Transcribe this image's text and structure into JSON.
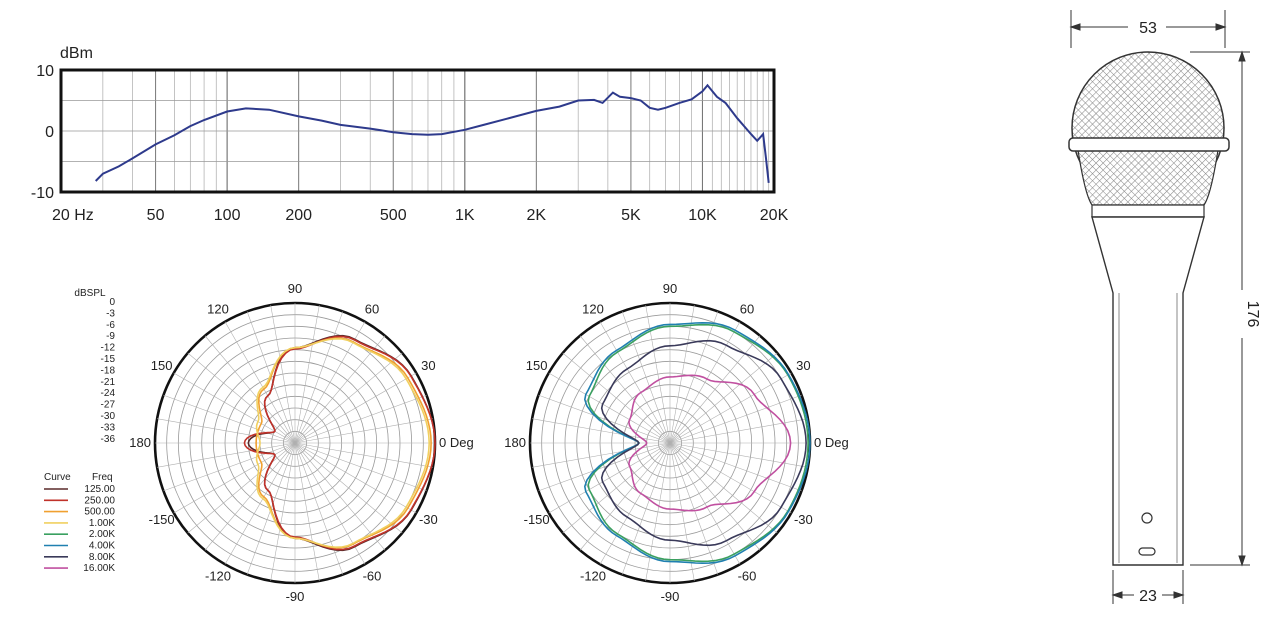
{
  "chart_data": [
    {
      "type": "line",
      "ylabel": "dBm",
      "x_scale": "log",
      "xlim": [
        20,
        20000
      ],
      "ylim": [
        -10,
        10
      ],
      "grid": true,
      "x_tick_values": [
        20,
        50,
        100,
        200,
        500,
        1000,
        2000,
        5000,
        10000,
        20000
      ],
      "x_tick_labels": [
        "20  Hz",
        "50",
        "100",
        "200",
        "500",
        "1K",
        "2K",
        "5K",
        "10K",
        "20K"
      ],
      "y_tick_values": [
        10,
        0,
        -10
      ],
      "y_tick_labels": [
        "10",
        "0",
        "-10"
      ],
      "color": "#2e3a8c",
      "series": [
        {
          "x": [
            28,
            30,
            35,
            40,
            50,
            60,
            70,
            80,
            100,
            120,
            150,
            200,
            250,
            300,
            400,
            500,
            600,
            700,
            800,
            1000,
            1200,
            1500,
            2000,
            2500,
            3000,
            3500,
            3800,
            4200,
            4500,
            5000,
            5500,
            6000,
            6500,
            7000,
            8000,
            9000,
            10000,
            10500,
            11500,
            12500,
            14000,
            16000,
            17000,
            18000,
            18500,
            19000
          ],
          "y": [
            -8.2,
            -7,
            -5.8,
            -4.5,
            -2.2,
            -0.7,
            0.8,
            1.8,
            3.2,
            3.7,
            3.5,
            2.4,
            1.7,
            1.0,
            0.4,
            -0.2,
            -0.5,
            -0.6,
            -0.5,
            0.2,
            1.0,
            2.0,
            3.3,
            4.0,
            5.0,
            5.1,
            4.6,
            6.3,
            5.6,
            5.4,
            5.0,
            3.8,
            3.5,
            3.8,
            4.6,
            5.2,
            6.5,
            7.5,
            5.6,
            4.6,
            2.1,
            -0.5,
            -1.6,
            -0.5,
            -4.5,
            -8.5
          ]
        }
      ]
    },
    {
      "type": "polar",
      "ylabel": "dBSPL",
      "r_tick_labels": [
        "0",
        "-3",
        "-6",
        "-9",
        "-12",
        "-15",
        "-18",
        "-21",
        "-24",
        "-27",
        "-30",
        "-33",
        "-36"
      ],
      "rlim": [
        -36,
        0
      ],
      "angle_labels": [
        "90",
        "60",
        "30",
        "0 Deg",
        "-30",
        "-60",
        "-90",
        "-120",
        "-150",
        "180",
        "150",
        "120"
      ],
      "angle_values": [
        90,
        60,
        30,
        0,
        -30,
        -60,
        -90,
        -120,
        -150,
        180,
        150,
        120
      ],
      "legend": {
        "placement": "left",
        "header_curve": "Curve",
        "header_freq": "Freq",
        "entries": [
          {
            "freq": "125.00",
            "color": "#5a2a2a"
          },
          {
            "freq": "250.00",
            "color": "#c0322a"
          },
          {
            "freq": "500.00",
            "color": "#f0a030"
          },
          {
            "freq": "1.00K",
            "color": "#f0d060"
          },
          {
            "freq": "2.00K",
            "color": "#3aa060"
          },
          {
            "freq": "4.00K",
            "color": "#2080b0"
          },
          {
            "freq": "8.00K",
            "color": "#3a3a5a"
          },
          {
            "freq": "16.00K",
            "color": "#c050a0"
          }
        ]
      },
      "series": [
        {
          "freq": "125.00",
          "color": "#5a2a2a",
          "angles": [
            0,
            30,
            60,
            90,
            120,
            150,
            180,
            -150,
            -120,
            -90,
            -60,
            -30
          ],
          "values": [
            0,
            -1.5,
            -5.2,
            -11.5,
            -22,
            -30,
            -24,
            -30,
            -22,
            -11.5,
            -5.2,
            -1.5
          ]
        },
        {
          "freq": "250.00",
          "color": "#c0322a",
          "angles": [
            0,
            30,
            60,
            90,
            120,
            150,
            180,
            -150,
            -120,
            -90,
            -60,
            -30
          ],
          "values": [
            0,
            -1.6,
            -5.4,
            -11.8,
            -22,
            -30,
            -23,
            -30,
            -22,
            -11.8,
            -5.4,
            -1.6
          ]
        },
        {
          "freq": "500.00",
          "color": "#f0a030",
          "angles": [
            0,
            30,
            60,
            90,
            120,
            150,
            180,
            -150,
            -120,
            -90,
            -60,
            -30
          ],
          "values": [
            -1,
            -2.5,
            -6,
            -11.5,
            -20,
            -26,
            -26,
            -26,
            -20,
            -11.5,
            -6,
            -2.5
          ]
        },
        {
          "freq": "1.00K",
          "color": "#f0d060",
          "angles": [
            0,
            30,
            60,
            90,
            120,
            150,
            180,
            -150,
            -120,
            -90,
            -60,
            -30
          ],
          "values": [
            -1.5,
            -3,
            -6.2,
            -11.5,
            -19.5,
            -25,
            -27,
            -25,
            -19.5,
            -11.5,
            -6.2,
            -3
          ]
        }
      ]
    },
    {
      "type": "polar",
      "rlim": [
        -36,
        0
      ],
      "angle_labels": [
        "90",
        "60",
        "30",
        "0 Deg",
        "-30",
        "-60",
        "-90",
        "-120",
        "-150",
        "180",
        "150",
        "120"
      ],
      "angle_values": [
        90,
        60,
        30,
        0,
        -30,
        -60,
        -90,
        -120,
        -150,
        180,
        150,
        120
      ],
      "series": [
        {
          "freq": "2.00K",
          "color": "#3aa060",
          "angles": [
            0,
            30,
            60,
            90,
            120,
            150,
            180,
            -150,
            -120,
            -90,
            -60,
            -30
          ],
          "values": [
            -0.5,
            -1,
            -3,
            -6,
            -9,
            -12,
            -28,
            -12,
            -9,
            -6,
            -3,
            -1
          ]
        },
        {
          "freq": "4.00K",
          "color": "#2080b0",
          "angles": [
            0,
            30,
            60,
            90,
            120,
            150,
            180,
            -150,
            -120,
            -90,
            -60,
            -30
          ],
          "values": [
            0,
            -0.8,
            -2.5,
            -5.5,
            -8.5,
            -11,
            -28,
            -11,
            -8.5,
            -5.5,
            -2.5,
            -0.8
          ]
        },
        {
          "freq": "8.00K",
          "color": "#3a3a5a",
          "angles": [
            0,
            30,
            60,
            90,
            120,
            150,
            180,
            -150,
            -120,
            -90,
            -60,
            -30
          ],
          "values": [
            -1,
            -3,
            -7,
            -11,
            -14,
            -16,
            -28,
            -16,
            -14,
            -11,
            -7,
            -3
          ]
        },
        {
          "freq": "16.00K",
          "color": "#c050a0",
          "angles": [
            0,
            30,
            60,
            90,
            120,
            150,
            180,
            -150,
            -120,
            -90,
            -60,
            -30
          ],
          "values": [
            -5,
            -11,
            -17,
            -19,
            -21,
            -24,
            -30,
            -24,
            -21,
            -19,
            -17,
            -11
          ]
        }
      ]
    }
  ],
  "dimensions": {
    "width": "53",
    "length": "176",
    "handle": "23"
  }
}
